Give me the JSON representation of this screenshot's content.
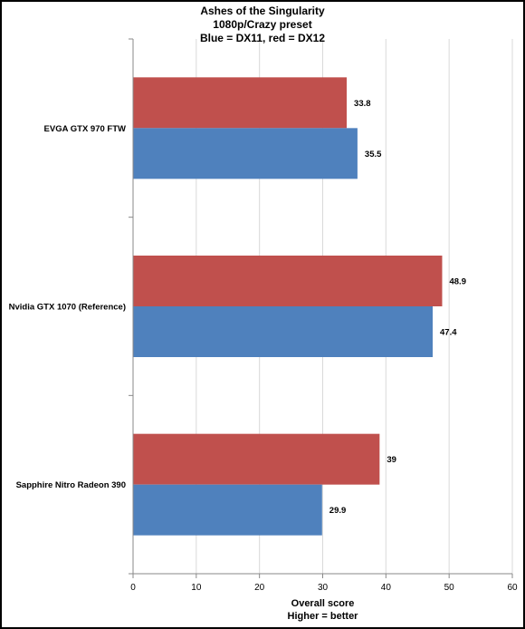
{
  "chart_data": {
    "type": "bar",
    "orientation": "horizontal",
    "title_lines": [
      "Ashes of the Singularity",
      "1080p/Crazy preset",
      "Blue = DX11, red = DX12"
    ],
    "xlabel_lines": [
      "Overall score",
      "Higher = better"
    ],
    "ylabel": "",
    "categories": [
      "EVGA GTX 970 FTW",
      "Nvidia GTX 1070 (Reference)",
      "Sapphire Nitro Radeon 390"
    ],
    "series": [
      {
        "key": "dx12",
        "color": "#c0504d",
        "values": [
          33.8,
          48.9,
          39
        ]
      },
      {
        "key": "dx11",
        "color": "#4f81bd",
        "values": [
          35.5,
          47.4,
          29.9
        ]
      }
    ],
    "xlim": [
      0,
      60
    ],
    "xticks": [
      0,
      10,
      20,
      30,
      40,
      50,
      60
    ],
    "grid": true,
    "legend": "none"
  }
}
